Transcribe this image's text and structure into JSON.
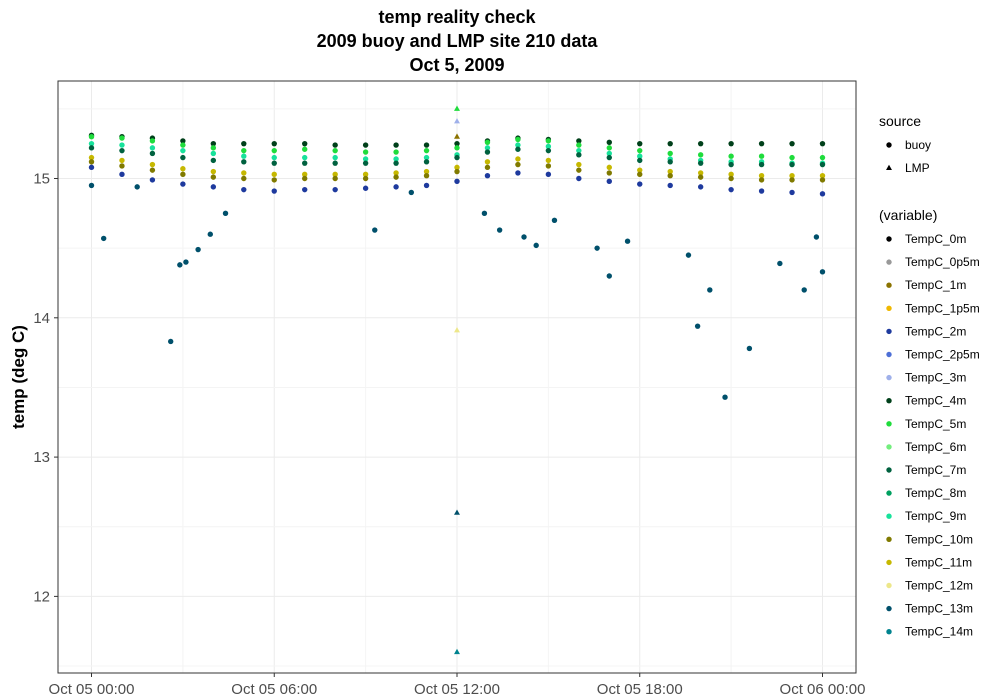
{
  "chart_data": {
    "type": "scatter",
    "title": [
      "temp reality check",
      "2009 buoy and LMP site 210 data",
      "Oct 5, 2009"
    ],
    "xlabel": "",
    "ylabel": "temp (deg C)",
    "x_ticks": [
      "Oct 05 00:00",
      "Oct 05 06:00",
      "Oct 05 12:00",
      "Oct 05 18:00",
      "Oct 06 00:00"
    ],
    "x_tick_hours": [
      0,
      6,
      12,
      18,
      24
    ],
    "xlim_hours": [
      -1.1,
      25.1
    ],
    "y_ticks": [
      12,
      13,
      14,
      15
    ],
    "ylim": [
      11.45,
      15.7
    ],
    "grid": true,
    "legend_placement": "right",
    "shape_legend": {
      "title": "source",
      "entries": [
        {
          "label": "buoy",
          "shape": "circle"
        },
        {
          "label": "LMP",
          "shape": "triangle"
        }
      ]
    },
    "color_legend": {
      "title": "(variable)",
      "entries": [
        {
          "label": "TempC_0m",
          "color": "#000000"
        },
        {
          "label": "TempC_0p5m",
          "color": "#999999"
        },
        {
          "label": "TempC_1m",
          "color": "#8b7300"
        },
        {
          "label": "TempC_1p5m",
          "color": "#f0b800"
        },
        {
          "label": "TempC_2m",
          "color": "#1e3a9e"
        },
        {
          "label": "TempC_2p5m",
          "color": "#4d6fd6"
        },
        {
          "label": "TempC_3m",
          "color": "#9fb0ea"
        },
        {
          "label": "TempC_4m",
          "color": "#00401a"
        },
        {
          "label": "TempC_5m",
          "color": "#1fdc3c"
        },
        {
          "label": "TempC_6m",
          "color": "#73ee7d"
        },
        {
          "label": "TempC_7m",
          "color": "#00613f"
        },
        {
          "label": "TempC_8m",
          "color": "#00a060"
        },
        {
          "label": "TempC_9m",
          "color": "#17e29b"
        },
        {
          "label": "TempC_10m",
          "color": "#807a00"
        },
        {
          "label": "TempC_11m",
          "color": "#c6b800"
        },
        {
          "label": "TempC_12m",
          "color": "#ede78a"
        },
        {
          "label": "TempC_13m",
          "color": "#00506b"
        },
        {
          "label": "TempC_14m",
          "color": "#00838f"
        }
      ]
    },
    "buoy_series": [
      {
        "variable": "TempC_4m",
        "hours": [
          0,
          1,
          2,
          3,
          4,
          5,
          6,
          7,
          8,
          9,
          10,
          11,
          12,
          13,
          14,
          15,
          16,
          17,
          18,
          19,
          20,
          21,
          22,
          23,
          24
        ],
        "values": [
          15.31,
          15.3,
          15.29,
          15.27,
          15.25,
          15.25,
          15.25,
          15.25,
          15.24,
          15.24,
          15.24,
          15.24,
          15.25,
          15.27,
          15.29,
          15.28,
          15.27,
          15.26,
          15.25,
          15.25,
          15.25,
          15.25,
          15.25,
          15.25,
          15.25
        ]
      },
      {
        "variable": "TempC_5m",
        "hours": [
          0,
          1,
          2,
          3,
          4,
          5,
          6,
          7,
          8,
          9,
          10,
          11,
          12,
          13,
          14,
          15,
          16,
          17,
          18,
          19,
          20,
          21,
          22,
          23,
          24
        ],
        "values": [
          15.3,
          15.29,
          15.27,
          15.24,
          15.22,
          15.2,
          15.2,
          15.21,
          15.2,
          15.19,
          15.19,
          15.2,
          15.22,
          15.26,
          15.28,
          15.27,
          15.24,
          15.22,
          15.2,
          15.18,
          15.17,
          15.16,
          15.16,
          15.15,
          15.15
        ]
      },
      {
        "variable": "TempC_9m",
        "hours": [
          0,
          1,
          2,
          3,
          4,
          5,
          6,
          7,
          8,
          9,
          10,
          11,
          12,
          13,
          14,
          15,
          16,
          17,
          18,
          19,
          20,
          21,
          22,
          23,
          24
        ],
        "values": [
          15.25,
          15.24,
          15.22,
          15.2,
          15.18,
          15.16,
          15.15,
          15.15,
          15.15,
          15.14,
          15.14,
          15.15,
          15.17,
          15.22,
          15.24,
          15.23,
          15.2,
          15.18,
          15.16,
          15.14,
          15.13,
          15.12,
          15.12,
          15.11,
          15.11
        ]
      },
      {
        "variable": "TempC_7m",
        "hours": [
          0,
          1,
          2,
          3,
          4,
          5,
          6,
          7,
          8,
          9,
          10,
          11,
          12,
          13,
          14,
          15,
          16,
          17,
          18,
          19,
          20,
          21,
          22,
          23,
          24
        ],
        "values": [
          15.22,
          15.2,
          15.18,
          15.15,
          15.13,
          15.12,
          15.11,
          15.11,
          15.11,
          15.11,
          15.11,
          15.12,
          15.15,
          15.19,
          15.21,
          15.2,
          15.17,
          15.15,
          15.13,
          15.12,
          15.11,
          15.1,
          15.1,
          15.1,
          15.1
        ]
      },
      {
        "variable": "TempC_11m",
        "hours": [
          0,
          1,
          2,
          3,
          4,
          5,
          6,
          7,
          8,
          9,
          10,
          11,
          12,
          13,
          14,
          15,
          16,
          17,
          18,
          19,
          20,
          21,
          22,
          23,
          24
        ],
        "values": [
          15.15,
          15.13,
          15.1,
          15.07,
          15.05,
          15.04,
          15.03,
          15.03,
          15.03,
          15.03,
          15.04,
          15.05,
          15.08,
          15.12,
          15.14,
          15.13,
          15.1,
          15.08,
          15.06,
          15.05,
          15.04,
          15.03,
          15.02,
          15.02,
          15.02
        ]
      },
      {
        "variable": "TempC_10m",
        "hours": [
          0,
          1,
          2,
          3,
          4,
          5,
          6,
          7,
          8,
          9,
          10,
          11,
          12,
          13,
          14,
          15,
          16,
          17,
          18,
          19,
          20,
          21,
          22,
          23,
          24
        ],
        "values": [
          15.12,
          15.09,
          15.06,
          15.03,
          15.01,
          15,
          14.99,
          15,
          15,
          15,
          15.01,
          15.02,
          15.05,
          15.08,
          15.1,
          15.09,
          15.06,
          15.04,
          15.03,
          15.02,
          15.01,
          15,
          14.99,
          14.99,
          14.99
        ]
      },
      {
        "variable": "TempC_2m",
        "hours": [
          0,
          1,
          2,
          3,
          4,
          5,
          6,
          7,
          8,
          9,
          10,
          11,
          12,
          13,
          14,
          15,
          16,
          17,
          18,
          19,
          20,
          21,
          22,
          23,
          24
        ],
        "values": [
          15.08,
          15.03,
          14.99,
          14.96,
          14.94,
          14.92,
          14.91,
          14.92,
          14.92,
          14.93,
          14.94,
          14.95,
          14.98,
          15.02,
          15.04,
          15.03,
          15,
          14.98,
          14.96,
          14.95,
          14.94,
          14.92,
          14.91,
          14.9,
          14.89
        ]
      },
      {
        "variable": "TempC_13m",
        "hours": [
          0,
          0.4,
          1.5,
          2.6,
          2.9,
          3.1,
          3.5,
          3.9,
          4.4,
          9.3,
          10.5,
          12.9,
          13.4,
          14.2,
          14.6,
          15.2,
          16.6,
          17,
          17.6,
          19.6,
          19.9,
          20.3,
          20.8,
          21.6,
          22.6,
          23.4,
          23.8,
          24
        ],
        "values": [
          14.95,
          14.57,
          14.94,
          13.83,
          14.38,
          14.4,
          14.49,
          14.6,
          14.75,
          14.63,
          14.9,
          14.75,
          14.63,
          14.58,
          14.52,
          14.7,
          14.5,
          14.3,
          14.55,
          14.45,
          13.94,
          14.2,
          13.43,
          13.78,
          14.39,
          14.2,
          14.58,
          14.33
        ]
      }
    ],
    "lmp_points": [
      {
        "variable": "TempC_5m",
        "hour": 12,
        "value": 15.5
      },
      {
        "variable": "TempC_3m",
        "hour": 12,
        "value": 15.41
      },
      {
        "variable": "TempC_1m",
        "hour": 12,
        "value": 15.3
      },
      {
        "variable": "TempC_12m",
        "hour": 12,
        "value": 13.91
      },
      {
        "variable": "TempC_13m",
        "hour": 12,
        "value": 12.6
      },
      {
        "variable": "TempC_14m",
        "hour": 12,
        "value": 11.6
      }
    ]
  }
}
